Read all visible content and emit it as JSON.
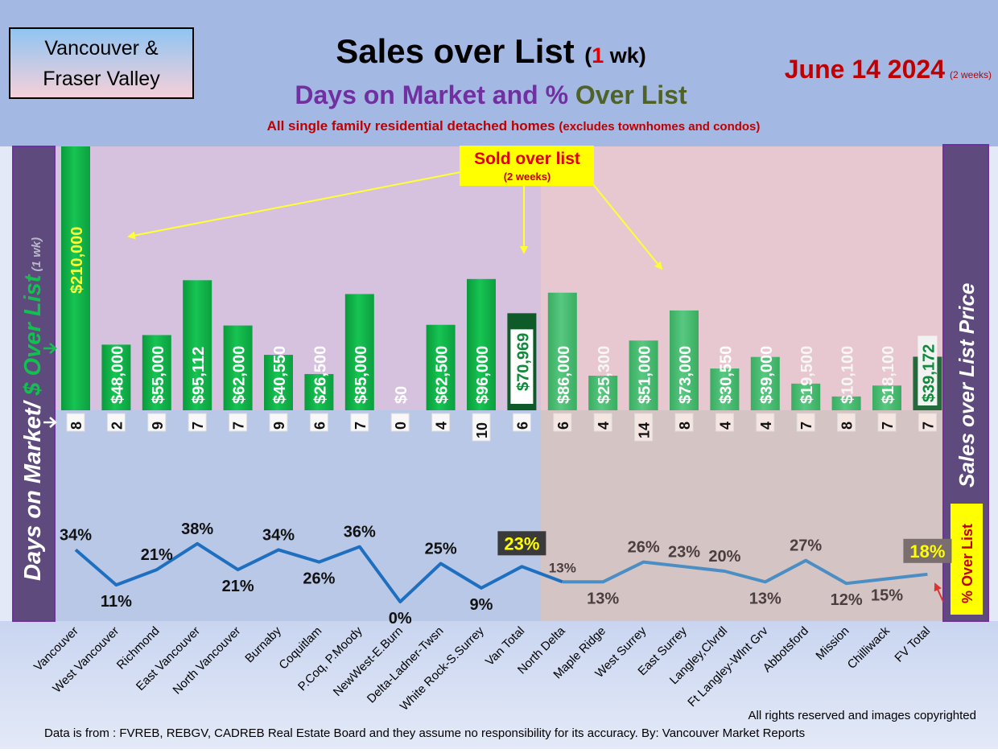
{
  "header": {
    "region_box_line1": "Vancouver &",
    "region_box_line2": "Fraser Valley",
    "title_main": "Sales over List",
    "title_paren_open": "(",
    "title_period_number": "1",
    "title_period_unit": " wk)",
    "subtitle_part1": "Days on Market and % ",
    "subtitle_part2": "Over List",
    "note": "All single family residential detached homes ",
    "note_paren": "(excludes townhomes and condos)",
    "date": "June 14  2024",
    "date_note": "(2 weeks)"
  },
  "left_label": {
    "part1": "Days on Market/",
    "part2": " $ Over List",
    "part3": "  (1 wk)"
  },
  "right_label": "Sales over List Price",
  "pct_badge": "% Over List",
  "callout": {
    "line1": "Sold over list",
    "line2": "(2 weeks)"
  },
  "footer": {
    "rights": "All rights reserved and  images copyrighted",
    "source": "Data is from : FVREB, REBGV, CADREB Real Estate Board and they assume no responsibility for its accuracy. By: Vancouver Market Reports"
  },
  "colors": {
    "van_bar": "#12b84c",
    "fv_bar": "#4cc074",
    "van_total_bar": "#0e5a28",
    "fv_total_bar": "#246b3c",
    "line_van": "#1f6fc0",
    "line_fv": "#4b8ec4",
    "header_bg": "#a4b8e4",
    "side_panel": "#5e4a7c",
    "title_red": "#c00000",
    "purple": "#7030a0",
    "olive": "#4f6228",
    "yellow_box": "#ffff00"
  },
  "chart_data": {
    "type": "bar",
    "categories": [
      "Vancouver",
      "West Vancouver",
      "Richmond",
      "East Vancouver",
      "North Vancouver",
      "Burnaby",
      "Coquitlam",
      "P.Coq, P.Moody",
      "NewWest-E.Burn",
      "Delta-Ladner-Twsn",
      "White Rock-S.Surrey",
      "Van Total",
      "North Delta",
      "Maple Ridge",
      "West Surrey",
      "East Surrey",
      "Langley,Clvrdl",
      "Ft Langley-Wlnt Grv",
      "Abbotsford",
      "Mission",
      "Chilliwack",
      "FV Total"
    ],
    "series": [
      {
        "name": "$ Over List",
        "values": [
          210000,
          48000,
          55000,
          95112,
          62000,
          40550,
          26500,
          85000,
          0,
          62500,
          96000,
          70969,
          86000,
          25300,
          51000,
          73000,
          30550,
          39000,
          19500,
          10100,
          18100,
          39172
        ],
        "labels": [
          "$210,000",
          "$48,000",
          "$55,000",
          "$95,112",
          "$62,000",
          "$40,550",
          "$26,500",
          "$85,000",
          "$0",
          "$62,500",
          "$96,000",
          "$70,969",
          "$86,000",
          "$25,300",
          "$51,000",
          "$73,000",
          "$30,550",
          "$39,000",
          "$19,500",
          "$10,100",
          "$18,100",
          "$39,172"
        ]
      },
      {
        "name": "Days on Market",
        "values": [
          8,
          2,
          9,
          7,
          7,
          9,
          6,
          7,
          0,
          4,
          10,
          6,
          6,
          4,
          14,
          8,
          4,
          4,
          7,
          8,
          7,
          7
        ],
        "labels": [
          "8",
          "2",
          "9",
          "7",
          "7",
          "9",
          "6",
          "7",
          "0",
          "4",
          "10",
          "6",
          "6",
          "4",
          "14",
          "8",
          "4",
          "4",
          "7",
          "8",
          "7",
          "7"
        ]
      },
      {
        "name": "% Over List",
        "values": [
          34,
          11,
          21,
          38,
          21,
          34,
          26,
          36,
          0,
          25,
          9,
          23,
          13,
          13,
          26,
          23,
          20,
          13,
          27,
          12,
          15,
          18
        ],
        "labels": [
          "34%",
          "11%",
          "21%",
          "38%",
          "21%",
          "34%",
          "26%",
          "36%",
          "0%",
          "25%",
          "9%",
          "23%",
          "13%",
          "13%",
          "26%",
          "23%",
          "20%",
          "13%",
          "27%",
          "12%",
          "15%",
          "18%"
        ]
      }
    ],
    "grid": false,
    "legend": "none"
  }
}
